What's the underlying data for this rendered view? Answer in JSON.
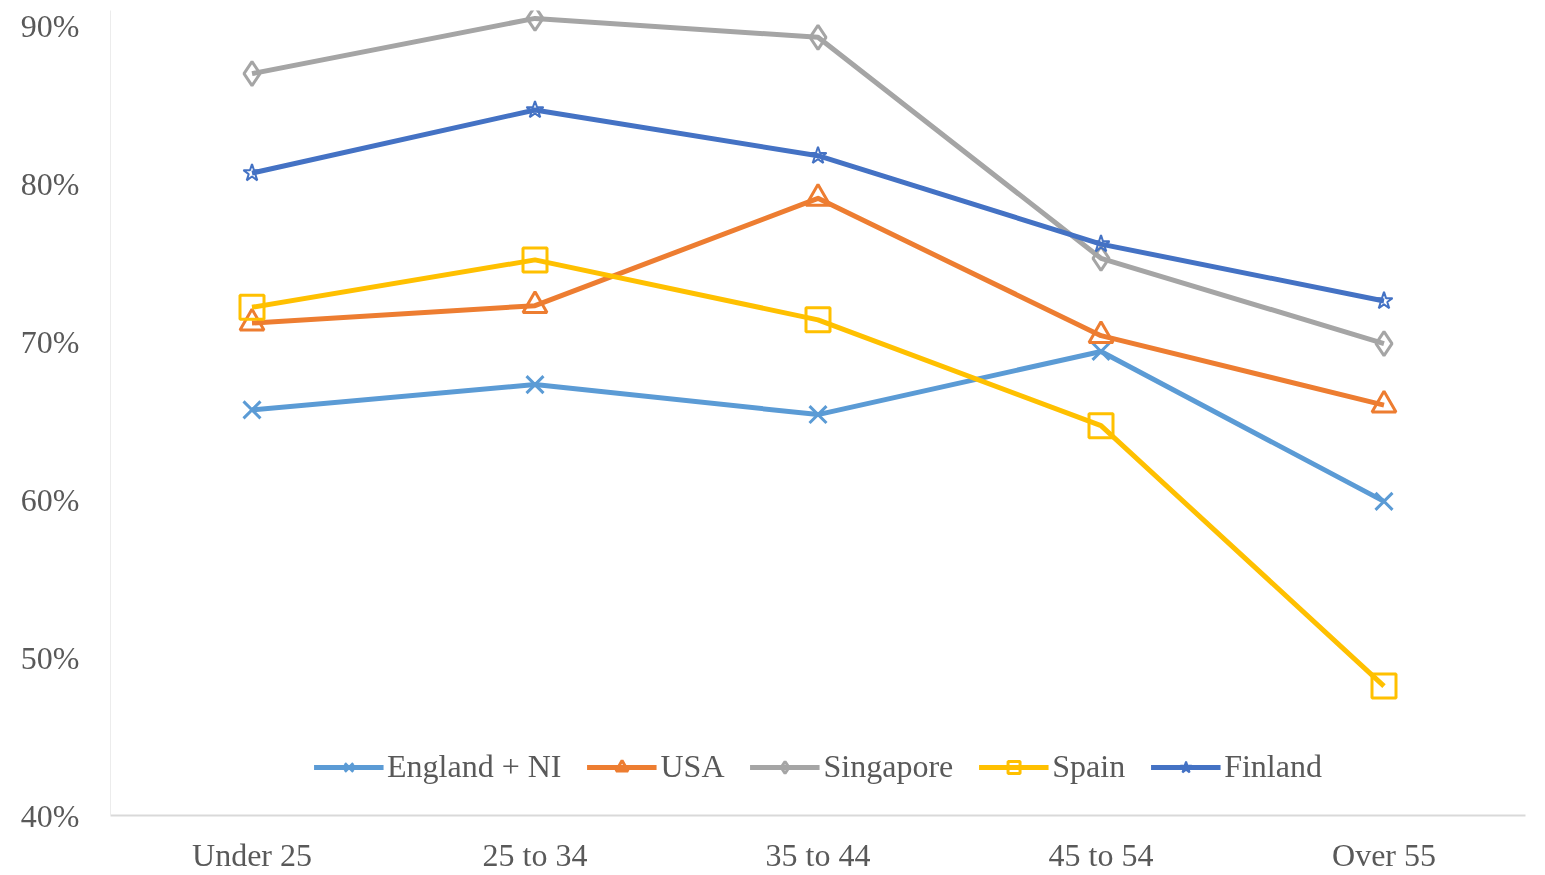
{
  "chart_data": {
    "type": "line",
    "categories": [
      "Under 25",
      "25 to 34",
      "35 to 44",
      "45 to 54",
      "Over 55"
    ],
    "ylim": [
      40,
      91
    ],
    "yticks": [
      {
        "value": 40,
        "label": "40%"
      },
      {
        "value": 50,
        "label": "50%"
      },
      {
        "value": 60,
        "label": "60%"
      },
      {
        "value": 70,
        "label": "70%"
      },
      {
        "value": 80,
        "label": "80%"
      },
      {
        "value": 90,
        "label": "90%"
      }
    ],
    "grid": false,
    "legend": "bottom",
    "line_style": "solid",
    "series": [
      {
        "name": "England + NI",
        "color": "#5b9bd5",
        "marker": "cross",
        "values": [
          65.7,
          67.3,
          65.4,
          69.4,
          59.9
        ]
      },
      {
        "name": "USA",
        "color": "#ed7d31",
        "marker": "triangle",
        "values": [
          71.2,
          72.3,
          79.1,
          70.4,
          66.0
        ]
      },
      {
        "name": "Singapore",
        "color": "#a5a5a5",
        "marker": "diamond",
        "values": [
          87.0,
          90.5,
          89.3,
          75.3,
          69.9
        ]
      },
      {
        "name": "Spain",
        "color": "#ffc000",
        "marker": "square",
        "values": [
          72.2,
          75.2,
          71.4,
          64.7,
          48.2
        ]
      },
      {
        "name": "Finland",
        "color": "#4472c4",
        "marker": "star",
        "values": [
          80.7,
          84.7,
          81.8,
          76.2,
          72.6
        ]
      }
    ]
  }
}
